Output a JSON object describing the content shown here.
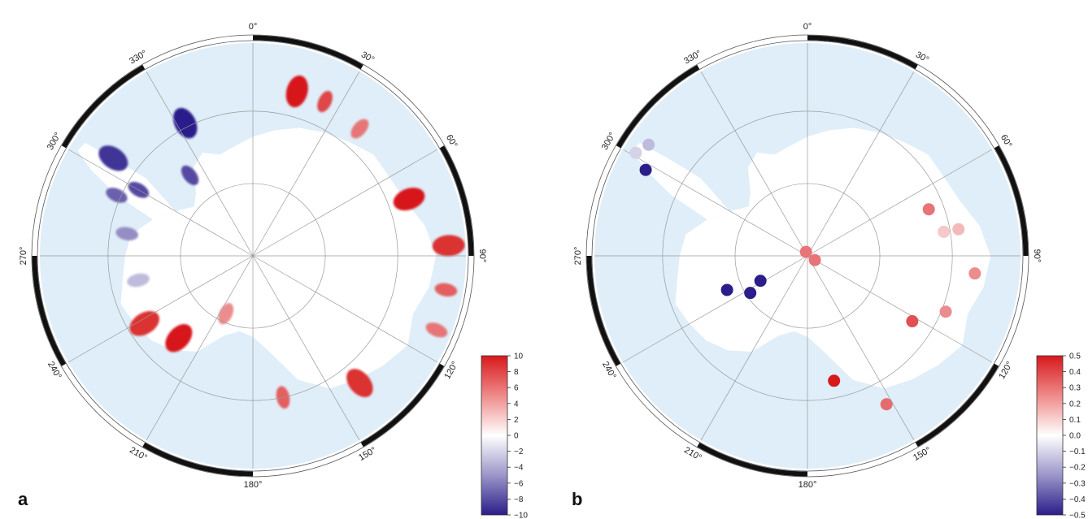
{
  "colors": {
    "ocean": "#dfeef8",
    "land": "#ffffff",
    "grid": "#9a9a9a",
    "frame_dark": "#111111",
    "positive": "#d7191c",
    "negative": "#2b1d8a"
  },
  "panels": [
    {
      "letter": "a",
      "lon_labels": [
        "0°",
        "30°",
        "60°",
        "90°",
        "120°",
        "150°",
        "180°",
        "210°",
        "240°",
        "270°",
        "300°",
        "330°"
      ],
      "colorbar": {
        "ticks": [
          "10",
          "8",
          "6",
          "4",
          "2",
          "0",
          "−2",
          "−4",
          "−6",
          "−8",
          "−10"
        ],
        "min": -10,
        "max": 10
      },
      "patches": [
        {
          "lon": 15,
          "r": 0.8,
          "value": 10
        },
        {
          "lon": 25,
          "r": 0.8,
          "value": 8
        },
        {
          "lon": 40,
          "r": 0.78,
          "value": 6
        },
        {
          "lon": 70,
          "r": 0.78,
          "value": 10
        },
        {
          "lon": 87,
          "r": 0.92,
          "value": 9
        },
        {
          "lon": 100,
          "r": 0.92,
          "value": 7
        },
        {
          "lon": 112,
          "r": 0.93,
          "value": 6
        },
        {
          "lon": 140,
          "r": 0.78,
          "value": 9
        },
        {
          "lon": 168,
          "r": 0.68,
          "value": 7
        },
        {
          "lon": 222,
          "r": 0.52,
          "value": 10
        },
        {
          "lon": 238,
          "r": 0.6,
          "value": 9
        },
        {
          "lon": 205,
          "r": 0.3,
          "value": 5
        },
        {
          "lon": 333,
          "r": 0.7,
          "value": -10
        },
        {
          "lon": 322,
          "r": 0.48,
          "value": -8
        },
        {
          "lon": 305,
          "r": 0.8,
          "value": -9
        },
        {
          "lon": 300,
          "r": 0.62,
          "value": -8
        },
        {
          "lon": 294,
          "r": 0.7,
          "value": -7
        },
        {
          "lon": 280,
          "r": 0.6,
          "value": -5
        },
        {
          "lon": 258,
          "r": 0.55,
          "value": -3
        }
      ]
    },
    {
      "letter": "b",
      "lon_labels": [
        "0°",
        "30°",
        "60°",
        "90°",
        "120°",
        "150°",
        "180°",
        "210°",
        "240°",
        "270°",
        "300°",
        "330°"
      ],
      "colorbar": {
        "ticks": [
          "0.5",
          "0.4",
          "0.3",
          "0.2",
          "0.1",
          "0.0",
          "−0.1",
          "−0.2",
          "−0.3",
          "−0.4",
          "−0.5"
        ],
        "min": -0.5,
        "max": 0.5
      },
      "stations": [
        {
          "lon": 305,
          "r": 0.91,
          "value": -0.15
        },
        {
          "lon": 301,
          "r": 0.94,
          "value": -0.1
        },
        {
          "lon": 298,
          "r": 0.86,
          "value": -0.5
        },
        {
          "lon": 80,
          "r": 0.72,
          "value": 0.15
        },
        {
          "lon": 69,
          "r": 0.61,
          "value": 0.3
        },
        {
          "lon": 80,
          "r": 0.65,
          "value": 0.12
        },
        {
          "lon": 96,
          "r": 0.79,
          "value": 0.25
        },
        {
          "lon": 112,
          "r": 0.7,
          "value": 0.25
        },
        {
          "lon": 122,
          "r": 0.58,
          "value": 0.38
        },
        {
          "lon": 152,
          "r": 0.79,
          "value": 0.32
        },
        {
          "lon": 168,
          "r": 0.6,
          "value": 0.5
        },
        {
          "lon": 340,
          "r": 0.02,
          "value": 0.3
        },
        {
          "lon": 120,
          "r": 0.04,
          "value": 0.3
        },
        {
          "lon": 242,
          "r": 0.25,
          "value": -0.5
        },
        {
          "lon": 237,
          "r": 0.32,
          "value": -0.5
        },
        {
          "lon": 247,
          "r": 0.41,
          "value": -0.5
        }
      ]
    }
  ]
}
